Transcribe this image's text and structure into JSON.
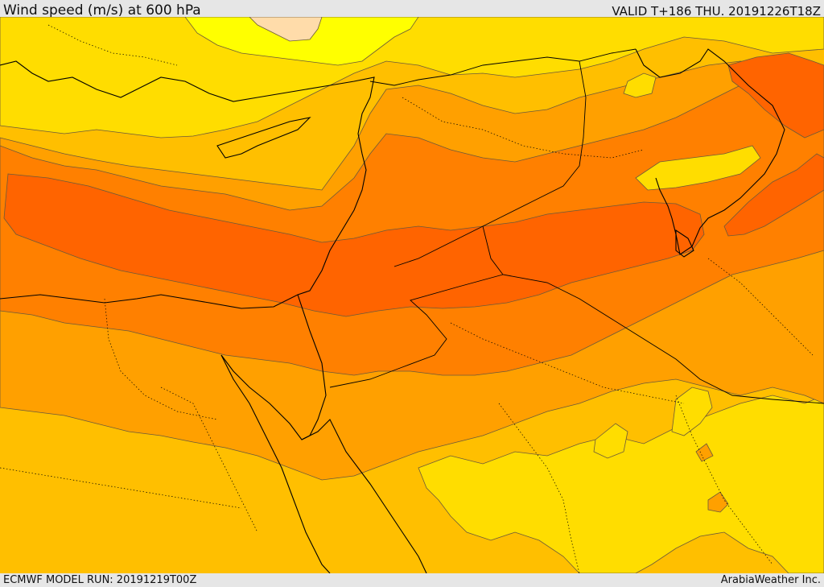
{
  "header": {
    "title": "Wind speed (m/s) at 600 hPa",
    "valid_time": "VALID T+186 THU. 20191226T18Z"
  },
  "footer": {
    "model_run": "ECMWF MODEL RUN: 20191219T00Z",
    "credit": "ArabiaWeather Inc."
  },
  "colors": {
    "band_light_yellow": "#ffff00",
    "band_yellow": "#ffdd00",
    "band_gold": "#ffbf00",
    "band_amber": "#ffa000",
    "band_orange": "#ff8000",
    "band_deep_orange": "#ff6400",
    "band_peach": "#ffdcaa",
    "coastline": "#000000",
    "contour": "#6b5a3a"
  }
}
